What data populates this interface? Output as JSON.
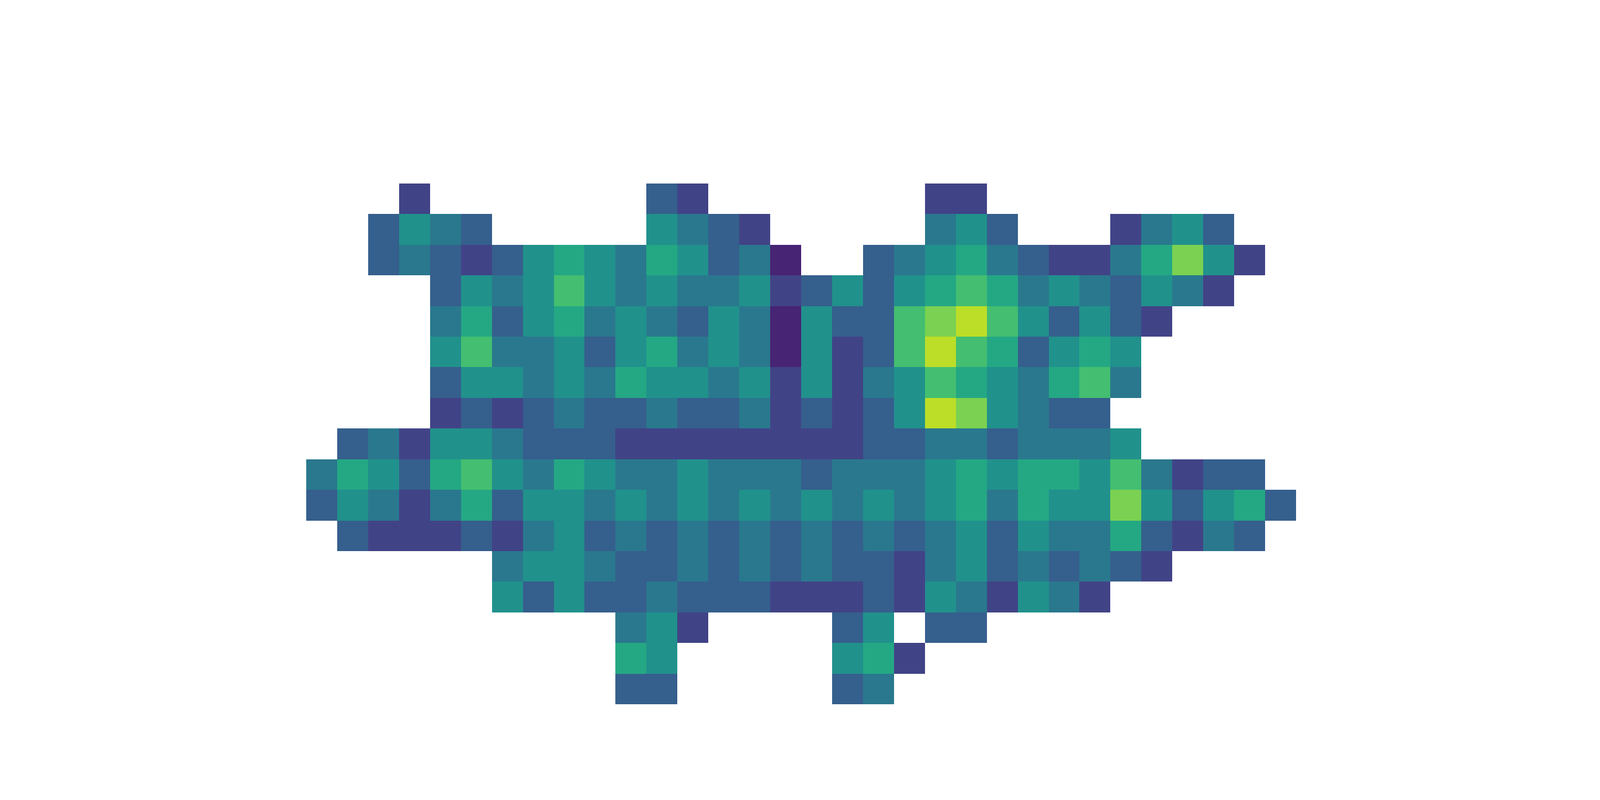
{
  "chart_data": {
    "type": "heatmap",
    "color": "Viridis",
    "zlim": [
      0,
      1
    ],
    "xlim": [
      -0.5,
      31.5
    ],
    "ylim": [
      16.5,
      -0.5
    ],
    "tick_labels": false,
    "grid": false,
    "cells": [
      [
        null,
        null,
        null,
        0.2,
        null,
        null,
        null,
        null,
        null,
        null,
        null,
        0.3,
        0.2,
        null,
        null,
        null,
        null,
        null,
        null,
        null,
        0.2,
        0.2,
        null,
        null,
        null,
        null,
        null,
        null,
        null,
        null,
        null,
        null
      ],
      [
        null,
        null,
        0.3,
        0.5,
        0.4,
        0.3,
        null,
        null,
        null,
        null,
        null,
        0.5,
        0.4,
        0.3,
        0.2,
        null,
        null,
        null,
        null,
        null,
        0.4,
        0.5,
        0.3,
        null,
        null,
        null,
        0.2,
        0.4,
        0.5,
        0.3,
        null,
        null
      ],
      [
        null,
        null,
        0.3,
        0.4,
        0.3,
        0.2,
        0.3,
        0.5,
        0.6,
        0.5,
        0.4,
        0.6,
        0.5,
        0.3,
        0.4,
        0.1,
        null,
        null,
        0.3,
        0.4,
        0.5,
        0.6,
        0.4,
        0.3,
        0.2,
        0.2,
        0.4,
        0.6,
        0.8,
        0.5,
        0.2,
        null
      ],
      [
        null,
        null,
        null,
        null,
        0.3,
        0.5,
        0.4,
        0.5,
        0.7,
        0.5,
        0.4,
        0.5,
        0.4,
        0.4,
        0.5,
        0.2,
        0.3,
        0.5,
        0.3,
        0.5,
        0.6,
        0.7,
        0.6,
        0.4,
        0.5,
        0.4,
        0.3,
        0.5,
        0.4,
        0.2,
        null,
        null
      ],
      [
        null,
        null,
        null,
        null,
        0.4,
        0.6,
        0.3,
        0.5,
        0.6,
        0.4,
        0.5,
        0.4,
        0.3,
        0.5,
        0.4,
        0.1,
        0.5,
        0.3,
        0.3,
        0.7,
        0.8,
        0.9,
        0.7,
        0.5,
        0.3,
        0.5,
        0.3,
        0.2,
        null,
        null,
        null,
        null
      ],
      [
        null,
        null,
        null,
        null,
        0.5,
        0.7,
        0.4,
        0.4,
        0.5,
        0.3,
        0.5,
        0.6,
        0.4,
        0.5,
        0.4,
        0.1,
        0.5,
        0.2,
        0.3,
        0.7,
        0.9,
        0.7,
        0.6,
        0.3,
        0.5,
        0.6,
        0.5,
        null,
        null,
        null,
        null,
        null
      ],
      [
        null,
        null,
        null,
        null,
        0.3,
        0.5,
        0.5,
        0.4,
        0.5,
        0.4,
        0.6,
        0.5,
        0.5,
        0.4,
        0.5,
        0.2,
        0.5,
        0.2,
        0.4,
        0.5,
        0.7,
        0.6,
        0.5,
        0.4,
        0.6,
        0.7,
        0.4,
        null,
        null,
        null,
        null,
        null
      ],
      [
        null,
        null,
        null,
        null,
        0.2,
        0.3,
        0.2,
        0.3,
        0.4,
        0.3,
        0.3,
        0.4,
        0.3,
        0.3,
        0.4,
        0.2,
        0.3,
        0.2,
        0.3,
        0.5,
        0.9,
        0.8,
        0.5,
        0.4,
        0.3,
        0.3,
        null,
        null,
        null,
        null,
        null,
        null
      ],
      [
        null,
        0.3,
        0.4,
        0.2,
        0.5,
        0.5,
        0.4,
        0.3,
        0.3,
        0.3,
        0.2,
        0.2,
        0.2,
        0.2,
        0.2,
        0.2,
        0.2,
        0.2,
        0.3,
        0.3,
        0.4,
        0.4,
        0.3,
        0.4,
        0.4,
        0.4,
        0.5,
        null,
        null,
        null,
        null,
        null
      ],
      [
        0.4,
        0.6,
        0.5,
        0.3,
        0.6,
        0.7,
        0.5,
        0.4,
        0.6,
        0.5,
        0.4,
        0.4,
        0.5,
        0.4,
        0.4,
        0.4,
        0.3,
        0.4,
        0.4,
        0.4,
        0.5,
        0.6,
        0.5,
        0.6,
        0.6,
        0.5,
        0.7,
        0.4,
        0.2,
        0.3,
        0.3,
        null
      ],
      [
        0.3,
        0.5,
        0.4,
        0.2,
        0.4,
        0.6,
        0.3,
        0.5,
        0.5,
        0.4,
        0.5,
        0.4,
        0.5,
        0.4,
        0.5,
        0.4,
        0.5,
        0.4,
        0.5,
        0.4,
        0.5,
        0.6,
        0.4,
        0.6,
        0.5,
        0.5,
        0.8,
        0.5,
        0.3,
        0.5,
        0.6,
        0.3
      ],
      [
        null,
        0.3,
        0.2,
        0.2,
        0.2,
        0.3,
        0.2,
        0.4,
        0.5,
        0.3,
        0.4,
        0.3,
        0.4,
        0.3,
        0.4,
        0.3,
        0.4,
        0.3,
        0.4,
        0.3,
        0.4,
        0.5,
        0.3,
        0.5,
        0.4,
        0.4,
        0.6,
        0.3,
        0.2,
        0.4,
        0.3,
        null
      ],
      [
        null,
        null,
        null,
        null,
        null,
        null,
        0.4,
        0.5,
        0.5,
        0.4,
        0.3,
        0.3,
        0.4,
        0.3,
        0.4,
        0.3,
        0.4,
        0.3,
        0.3,
        0.2,
        0.4,
        0.5,
        0.3,
        0.4,
        0.3,
        0.4,
        0.3,
        0.2,
        null,
        null,
        null,
        null
      ],
      [
        null,
        null,
        null,
        null,
        null,
        null,
        0.5,
        0.3,
        0.5,
        0.3,
        0.3,
        0.4,
        0.3,
        0.3,
        0.3,
        0.2,
        0.2,
        0.2,
        0.3,
        0.2,
        0.5,
        0.4,
        0.2,
        0.5,
        0.4,
        0.2,
        null,
        null,
        null,
        null,
        null,
        null
      ],
      [
        null,
        null,
        null,
        null,
        null,
        null,
        null,
        null,
        null,
        null,
        0.4,
        0.5,
        0.2,
        null,
        null,
        null,
        null,
        0.3,
        0.5,
        null,
        0.3,
        0.3,
        null,
        null,
        null,
        null,
        null,
        null,
        null,
        null,
        null,
        null
      ],
      [
        null,
        null,
        null,
        null,
        null,
        null,
        null,
        null,
        null,
        null,
        0.6,
        0.5,
        null,
        null,
        null,
        null,
        null,
        0.5,
        0.6,
        0.2,
        null,
        null,
        null,
        null,
        null,
        null,
        null,
        null,
        null,
        null,
        null,
        null
      ],
      [
        null,
        null,
        null,
        null,
        null,
        null,
        null,
        null,
        null,
        null,
        0.3,
        0.3,
        null,
        null,
        null,
        null,
        null,
        0.3,
        0.4,
        null,
        null,
        null,
        null,
        null,
        null,
        null,
        null,
        null,
        null,
        null,
        null,
        null
      ]
    ]
  }
}
